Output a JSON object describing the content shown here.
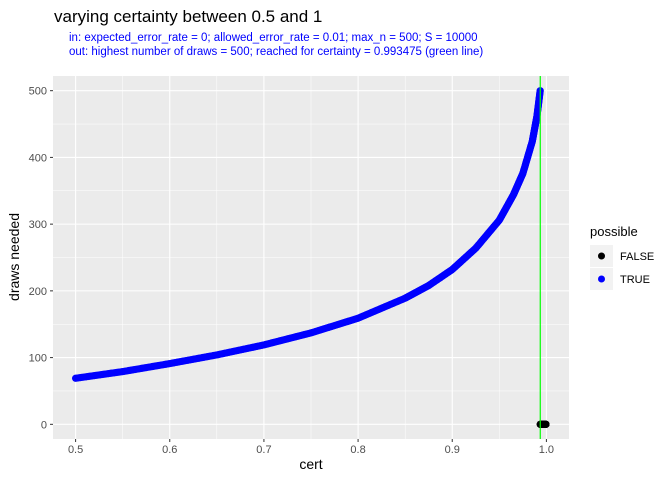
{
  "chart_data": {
    "type": "scatter",
    "title": "varying certainty between 0.5 and 1",
    "subtitle_lines": [
      "in: expected_error_rate = 0; allowed_error_rate = 0.01; max_n = 500; S = 10000",
      "out: highest number of draws = 500; reached for certainty = 0.993475 (green line)"
    ],
    "subtitle_color": "#0000ff",
    "xlabel": "cert",
    "ylabel": "draws needed",
    "xlim": [
      0.476,
      1.024
    ],
    "ylim": [
      -22,
      522
    ],
    "x_ticks": [
      0.5,
      0.6,
      0.7,
      0.8,
      0.9,
      1.0
    ],
    "x_tick_labels": [
      "0.5",
      "0.6",
      "0.7",
      "0.8",
      "0.9",
      "1.0"
    ],
    "y_ticks": [
      0,
      100,
      200,
      300,
      400,
      500
    ],
    "y_tick_labels": [
      "0",
      "100",
      "200",
      "300",
      "400",
      "500"
    ],
    "grid": true,
    "panel_background": "#ebebeb",
    "grid_color": "#ffffff",
    "vline": {
      "x": 0.993475,
      "color": "#00ff00"
    },
    "legend": {
      "title": "possible",
      "position": "right",
      "entries": [
        {
          "label": "FALSE",
          "color": "#000000"
        },
        {
          "label": "TRUE",
          "color": "#0000ff"
        }
      ]
    },
    "series": [
      {
        "name": "TRUE",
        "color": "#0000ff",
        "points": [
          [
            0.5,
            69
          ],
          [
            0.55,
            79
          ],
          [
            0.6,
            91
          ],
          [
            0.65,
            104
          ],
          [
            0.7,
            119
          ],
          [
            0.75,
            137
          ],
          [
            0.8,
            159
          ],
          [
            0.85,
            189
          ],
          [
            0.875,
            208
          ],
          [
            0.9,
            232
          ],
          [
            0.925,
            264
          ],
          [
            0.95,
            306
          ],
          [
            0.965,
            344
          ],
          [
            0.975,
            376
          ],
          [
            0.985,
            424
          ],
          [
            0.99,
            462
          ],
          [
            0.9934,
            500
          ]
        ]
      },
      {
        "name": "FALSE",
        "color": "#000000",
        "points": [
          [
            0.9935,
            0
          ],
          [
            0.995,
            0
          ],
          [
            0.9965,
            0
          ],
          [
            0.998,
            0
          ],
          [
            0.9995,
            0
          ]
        ]
      }
    ]
  }
}
